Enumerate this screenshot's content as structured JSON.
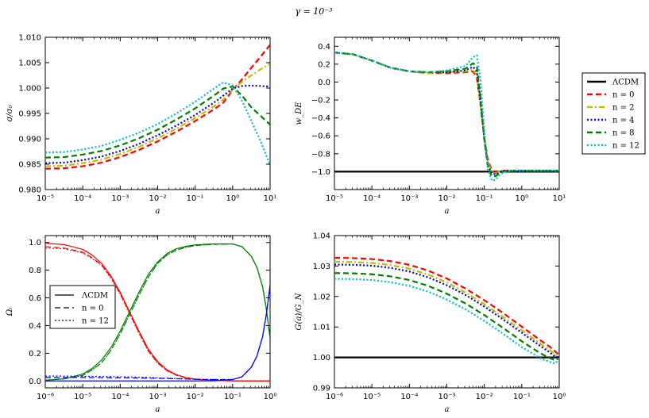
{
  "title": "γ = 10⁻³",
  "legend_outer": {
    "entries": [
      {
        "label": "ΛCDM",
        "color": "#000000",
        "dash": "solid",
        "width": 2.5
      },
      {
        "label": "n = 0",
        "color": "#ff0000",
        "dash": "dashed",
        "width": 2.5
      },
      {
        "label": "n = 2",
        "color": "#bfbf00",
        "dash": "dashdot",
        "width": 2.5
      },
      {
        "label": "n = 4",
        "color": "#0000cc",
        "dash": "dotted",
        "width": 2.5
      },
      {
        "label": "n = 8",
        "color": "#007f00",
        "dash": "dashed",
        "width": 2.5
      },
      {
        "label": "n = 12",
        "color": "#00bfbf",
        "dash": "dotted",
        "width": 2.5
      }
    ]
  },
  "chart_data": [
    {
      "id": "sigma",
      "type": "line",
      "xscale": "log",
      "xlabel": "a",
      "ylabel": "σ/σ₀",
      "xlim": [
        -5,
        1
      ],
      "ylim": [
        0.98,
        1.01
      ],
      "xticks": [
        -5,
        -4,
        -3,
        -2,
        -1,
        0,
        1
      ],
      "xticklabels": [
        "10⁻⁵",
        "10⁻⁴",
        "10⁻³",
        "10⁻²",
        "10⁻¹",
        "10⁰",
        "10¹"
      ],
      "yticks": [
        0.98,
        0.985,
        0.99,
        0.995,
        1.0,
        1.005,
        1.01
      ],
      "yticklabels": [
        "0.980",
        "0.985",
        "0.990",
        "0.995",
        "1.000",
        "1.005",
        "1.010"
      ],
      "x": [
        -5,
        -4.5,
        -4,
        -3.5,
        -3,
        -2.5,
        -2,
        -1.5,
        -1,
        -0.5,
        -0.25,
        0,
        0.25,
        0.5,
        0.75,
        1
      ],
      "series": [
        {
          "name": "n = 0",
          "color": "#ff0000",
          "dash": "dashed",
          "values": [
            0.9841,
            0.9842,
            0.9846,
            0.9853,
            0.9864,
            0.9878,
            0.9895,
            0.9914,
            0.9935,
            0.9958,
            0.9971,
            0.9996,
            1.0017,
            1.004,
            1.0062,
            1.0085
          ]
        },
        {
          "name": "n = 2",
          "color": "#bfbf00",
          "dash": "dashdot",
          "values": [
            0.9846,
            0.9847,
            0.9852,
            0.9859,
            0.987,
            0.9884,
            0.9901,
            0.992,
            0.9941,
            0.9964,
            0.9977,
            0.9997,
            1.0012,
            1.0025,
            1.0037,
            1.0048
          ]
        },
        {
          "name": "n = 4",
          "color": "#0000cc",
          "dash": "dotted",
          "values": [
            0.9852,
            0.9853,
            0.9858,
            0.9865,
            0.9876,
            0.989,
            0.9907,
            0.9926,
            0.9947,
            0.9971,
            0.9985,
            0.9999,
            1.0004,
            1.0005,
            1.0004,
            1.0003
          ]
        },
        {
          "name": "n = 8",
          "color": "#007f00",
          "dash": "dashed",
          "values": [
            0.9863,
            0.9864,
            0.9869,
            0.9876,
            0.9887,
            0.9901,
            0.9918,
            0.9938,
            0.996,
            0.9985,
            0.9999,
            1.0003,
            0.9985,
            0.9962,
            0.9945,
            0.9928
          ]
        },
        {
          "name": "n = 12",
          "color": "#00bfbf",
          "dash": "dotted",
          "values": [
            0.9873,
            0.9874,
            0.9879,
            0.9886,
            0.9898,
            0.9912,
            0.9929,
            0.995,
            0.9973,
            0.9999,
            1.0011,
            1.0005,
            0.9975,
            0.9935,
            0.9895,
            0.9848
          ]
        }
      ]
    },
    {
      "id": "wde",
      "type": "line",
      "xscale": "log",
      "xlabel": "a",
      "ylabel": "w_DE",
      "xlim": [
        -5,
        1
      ],
      "ylim": [
        -1.2,
        0.5
      ],
      "xticks": [
        -5,
        -4,
        -3,
        -2,
        -1,
        0,
        1
      ],
      "xticklabels": [
        "10⁻⁵",
        "10⁻⁴",
        "10⁻³",
        "10⁻²",
        "10⁻¹",
        "10⁰",
        "10¹"
      ],
      "yticks": [
        -1.0,
        -0.8,
        -0.6,
        -0.4,
        -0.2,
        0.0,
        0.2,
        0.4
      ],
      "yticklabels": [
        "−1.0",
        "−0.8",
        "−0.6",
        "−0.4",
        "−0.2",
        "0.0",
        "0.2",
        "0.4"
      ],
      "series": [
        {
          "name": "ΛCDM",
          "color": "#000000",
          "dash": "solid",
          "x": [
            -5,
            1
          ],
          "values": [
            -1.0,
            -1.0
          ]
        },
        {
          "name": "n = 0",
          "color": "#ff0000",
          "dash": "dashed",
          "x": [
            -5,
            -4.5,
            -4,
            -3.5,
            -3,
            -2.5,
            -2,
            -1.5,
            -1.3,
            -1.2,
            -1.1,
            -1.0,
            -0.9,
            -0.8,
            -0.7,
            -0.6,
            -0.5,
            -0.3,
            0,
            0.5,
            1
          ],
          "values": [
            0.33,
            0.31,
            0.24,
            0.16,
            0.12,
            0.1,
            0.1,
            0.11,
            0.12,
            0.05,
            -0.25,
            -0.62,
            -0.88,
            -0.98,
            -1.01,
            -1.0,
            -0.99,
            -0.99,
            -0.99,
            -0.99,
            -0.99
          ]
        },
        {
          "name": "n = 2",
          "color": "#bfbf00",
          "dash": "dashdot",
          "x": [
            -5,
            -4.5,
            -4,
            -3.5,
            -3,
            -2.5,
            -2,
            -1.5,
            -1.3,
            -1.2,
            -1.1,
            -1.0,
            -0.9,
            -0.8,
            -0.7,
            -0.6,
            -0.5,
            -0.3,
            0,
            0.5,
            1
          ],
          "values": [
            0.33,
            0.31,
            0.24,
            0.16,
            0.12,
            0.1,
            0.11,
            0.12,
            0.14,
            0.08,
            -0.24,
            -0.63,
            -0.9,
            -1.0,
            -1.02,
            -1.0,
            -0.99,
            -0.99,
            -0.99,
            -0.99,
            -0.99
          ]
        },
        {
          "name": "n = 4",
          "color": "#0000cc",
          "dash": "dotted",
          "x": [
            -5,
            -4.5,
            -4,
            -3.5,
            -3,
            -2.5,
            -2,
            -1.5,
            -1.3,
            -1.2,
            -1.1,
            -1.0,
            -0.9,
            -0.8,
            -0.7,
            -0.6,
            -0.5,
            -0.3,
            0,
            0.5,
            1
          ],
          "values": [
            0.33,
            0.31,
            0.24,
            0.16,
            0.12,
            0.11,
            0.11,
            0.13,
            0.17,
            0.12,
            -0.22,
            -0.64,
            -0.93,
            -1.02,
            -1.03,
            -1.01,
            -0.99,
            -0.99,
            -0.99,
            -0.99,
            -0.99
          ]
        },
        {
          "name": "n = 8",
          "color": "#007f00",
          "dash": "dashed",
          "x": [
            -5,
            -4.5,
            -4,
            -3.5,
            -3,
            -2.5,
            -2,
            -1.5,
            -1.3,
            -1.2,
            -1.1,
            -1.0,
            -0.9,
            -0.8,
            -0.7,
            -0.6,
            -0.5,
            -0.3,
            0,
            0.5,
            1
          ],
          "values": [
            0.33,
            0.31,
            0.24,
            0.16,
            0.12,
            0.11,
            0.12,
            0.15,
            0.21,
            0.18,
            -0.18,
            -0.64,
            -0.96,
            -1.05,
            -1.05,
            -1.02,
            -1.0,
            -0.99,
            -0.99,
            -0.99,
            -0.99
          ]
        },
        {
          "name": "n = 12",
          "color": "#00bfbf",
          "dash": "dotted",
          "x": [
            -5,
            -4.5,
            -4,
            -3.5,
            -3,
            -2.5,
            -2,
            -1.5,
            -1.3,
            -1.2,
            -1.1,
            -1.0,
            -0.9,
            -0.8,
            -0.7,
            -0.6,
            -0.5,
            -0.3,
            0,
            0.5,
            1
          ],
          "values": [
            0.33,
            0.31,
            0.24,
            0.16,
            0.12,
            0.11,
            0.13,
            0.18,
            0.28,
            0.3,
            0.02,
            -0.55,
            -0.98,
            -1.1,
            -1.09,
            -1.04,
            -1.01,
            -0.99,
            -0.99,
            -0.99,
            -0.99
          ]
        }
      ]
    },
    {
      "id": "omega",
      "type": "line",
      "xscale": "log",
      "xlabel": "a",
      "ylabel": "Ωᵢ",
      "xlim": [
        -6,
        0
      ],
      "ylim": [
        -0.05,
        1.05
      ],
      "xticks": [
        -6,
        -5,
        -4,
        -3,
        -2,
        -1,
        0
      ],
      "xticklabels": [
        "10⁻⁶",
        "10⁻⁵",
        "10⁻⁴",
        "10⁻³",
        "10⁻²",
        "10⁻¹",
        "10⁰"
      ],
      "yticks": [
        0.0,
        0.2,
        0.4,
        0.6,
        0.8,
        1.0
      ],
      "yticklabels": [
        "0.0",
        "0.2",
        "0.4",
        "0.6",
        "0.8",
        "1.0"
      ],
      "legend": [
        {
          "label": "ΛCDM",
          "dash": "solid"
        },
        {
          "label": "n = 0",
          "dash": "dashed"
        },
        {
          "label": "n = 12",
          "dash": "dotted"
        }
      ],
      "x": [
        -6,
        -5.5,
        -5,
        -4.75,
        -4.5,
        -4.25,
        -4,
        -3.75,
        -3.5,
        -3.25,
        -3,
        -2.75,
        -2.5,
        -2.25,
        -2,
        -1.5,
        -1,
        -0.75,
        -0.5,
        -0.35,
        -0.2,
        -0.1,
        0
      ],
      "series": [
        {
          "name": "radiation ΛCDM",
          "color": "#ff0000",
          "dash": "solid",
          "values": [
            0.995,
            0.985,
            0.95,
            0.91,
            0.85,
            0.76,
            0.64,
            0.5,
            0.36,
            0.23,
            0.14,
            0.08,
            0.045,
            0.025,
            0.013,
            0.004,
            0.001,
            0,
            0,
            0,
            0,
            0,
            0
          ]
        },
        {
          "name": "radiation n = 0",
          "color": "#ff0000",
          "dash": "dashed",
          "values": [
            0.97,
            0.96,
            0.93,
            0.89,
            0.84,
            0.75,
            0.63,
            0.49,
            0.35,
            0.22,
            0.13,
            0.075,
            0.042,
            0.023,
            0.012,
            0.004,
            0.001,
            0,
            0,
            0,
            0,
            0,
            0
          ]
        },
        {
          "name": "radiation n = 12",
          "color": "#ff0000",
          "dash": "dotted",
          "values": [
            0.96,
            0.955,
            0.925,
            0.885,
            0.835,
            0.745,
            0.625,
            0.485,
            0.345,
            0.215,
            0.128,
            0.073,
            0.041,
            0.022,
            0.012,
            0.004,
            0.001,
            0,
            0,
            0,
            0,
            0,
            0
          ]
        },
        {
          "name": "matter ΛCDM",
          "color": "#008000",
          "dash": "solid",
          "values": [
            0.005,
            0.015,
            0.05,
            0.09,
            0.15,
            0.24,
            0.36,
            0.5,
            0.64,
            0.77,
            0.86,
            0.92,
            0.955,
            0.972,
            0.983,
            0.99,
            0.99,
            0.97,
            0.9,
            0.82,
            0.68,
            0.52,
            0.31
          ]
        },
        {
          "name": "matter n = 0",
          "color": "#008000",
          "dash": "dashed",
          "values": [
            0.005,
            0.015,
            0.04,
            0.08,
            0.13,
            0.22,
            0.34,
            0.48,
            0.62,
            0.75,
            0.85,
            0.91,
            0.945,
            0.965,
            0.978,
            0.987,
            0.989,
            0.97,
            0.9,
            0.82,
            0.68,
            0.52,
            0.31
          ]
        },
        {
          "name": "matter n = 12",
          "color": "#008000",
          "dash": "dotted",
          "values": [
            0.005,
            0.015,
            0.04,
            0.08,
            0.13,
            0.22,
            0.34,
            0.48,
            0.62,
            0.75,
            0.85,
            0.91,
            0.945,
            0.965,
            0.978,
            0.987,
            0.989,
            0.97,
            0.9,
            0.82,
            0.68,
            0.52,
            0.31
          ]
        },
        {
          "name": "dark energy ΛCDM",
          "color": "#0000ff",
          "dash": "solid",
          "values": [
            0,
            0,
            0,
            0,
            0,
            0,
            0,
            0,
            0,
            0,
            0,
            0,
            0,
            0,
            0,
            0.001,
            0.01,
            0.03,
            0.1,
            0.18,
            0.32,
            0.48,
            0.69
          ]
        },
        {
          "name": "dark energy n = 0",
          "color": "#0000ff",
          "dash": "dashed",
          "values": [
            0.025,
            0.025,
            0.025,
            0.024,
            0.024,
            0.023,
            0.023,
            0.022,
            0.021,
            0.02,
            0.019,
            0.018,
            0.016,
            0.014,
            0.012,
            0.01,
            0.01,
            0.03,
            0.1,
            0.18,
            0.32,
            0.48,
            0.69
          ]
        },
        {
          "name": "dark energy n = 12",
          "color": "#0000ff",
          "dash": "dotted",
          "values": [
            0.035,
            0.035,
            0.034,
            0.033,
            0.032,
            0.031,
            0.03,
            0.029,
            0.027,
            0.025,
            0.022,
            0.02,
            0.017,
            0.015,
            0.013,
            0.01,
            0.01,
            0.03,
            0.1,
            0.18,
            0.32,
            0.48,
            0.69
          ]
        }
      ]
    },
    {
      "id": "geff",
      "type": "line",
      "xscale": "log",
      "xlabel": "a",
      "ylabel": "G(a)/G_N",
      "xlim": [
        -6,
        0
      ],
      "ylim": [
        0.99,
        1.04
      ],
      "xticks": [
        -6,
        -5,
        -4,
        -3,
        -2,
        -1,
        0
      ],
      "xticklabels": [
        "10⁻⁶",
        "10⁻⁵",
        "10⁻⁴",
        "10⁻³",
        "10⁻²",
        "10⁻¹",
        "10⁰"
      ],
      "yticks": [
        0.99,
        1.0,
        1.01,
        1.02,
        1.03,
        1.04
      ],
      "yticklabels": [
        "0.99",
        "1.00",
        "1.01",
        "1.02",
        "1.03",
        "1.04"
      ],
      "x": [
        -6,
        -5.5,
        -5,
        -4.5,
        -4,
        -3.5,
        -3,
        -2.5,
        -2,
        -1.5,
        -1,
        -0.5,
        -0.25,
        -0.1,
        0
      ],
      "series": [
        {
          "name": "ΛCDM",
          "color": "#000000",
          "dash": "solid",
          "values": [
            1.0,
            1.0,
            1.0,
            1.0,
            1.0,
            1.0,
            1.0,
            1.0,
            1.0,
            1.0,
            1.0,
            1.0,
            1.0,
            1.0,
            1.0
          ]
        },
        {
          "name": "n = 0",
          "color": "#ff0000",
          "dash": "dashed",
          "values": [
            1.0327,
            1.0326,
            1.0323,
            1.0316,
            1.0304,
            1.0285,
            1.0259,
            1.0226,
            1.0188,
            1.0146,
            1.0101,
            1.0056,
            1.0035,
            1.0019,
            1.0008
          ]
        },
        {
          "name": "n = 2",
          "color": "#bfbf00",
          "dash": "dashdot",
          "values": [
            1.0314,
            1.0313,
            1.031,
            1.0303,
            1.0291,
            1.0272,
            1.0246,
            1.0213,
            1.0175,
            1.0133,
            1.0089,
            1.0045,
            1.0024,
            1.0009,
            1.0004
          ]
        },
        {
          "name": "n = 4",
          "color": "#0000cc",
          "dash": "dotted",
          "values": [
            1.0305,
            1.0304,
            1.0301,
            1.0294,
            1.0282,
            1.0263,
            1.0237,
            1.0205,
            1.0167,
            1.0125,
            1.0081,
            1.0037,
            1.0016,
            1.0002,
            1.0001
          ]
        },
        {
          "name": "n = 8",
          "color": "#007f00",
          "dash": "dashed",
          "values": [
            1.0277,
            1.0276,
            1.0273,
            1.0266,
            1.0254,
            1.0235,
            1.0209,
            1.0177,
            1.0139,
            1.0097,
            1.0053,
            1.0013,
            0.9998,
            0.999,
            0.9998
          ]
        },
        {
          "name": "n = 12",
          "color": "#00bfbf",
          "dash": "dotted",
          "values": [
            1.0258,
            1.0257,
            1.0254,
            1.0247,
            1.0235,
            1.0216,
            1.019,
            1.0158,
            1.012,
            1.0078,
            1.0034,
            0.9997,
            0.9985,
            0.998,
            0.9999
          ]
        }
      ]
    }
  ]
}
